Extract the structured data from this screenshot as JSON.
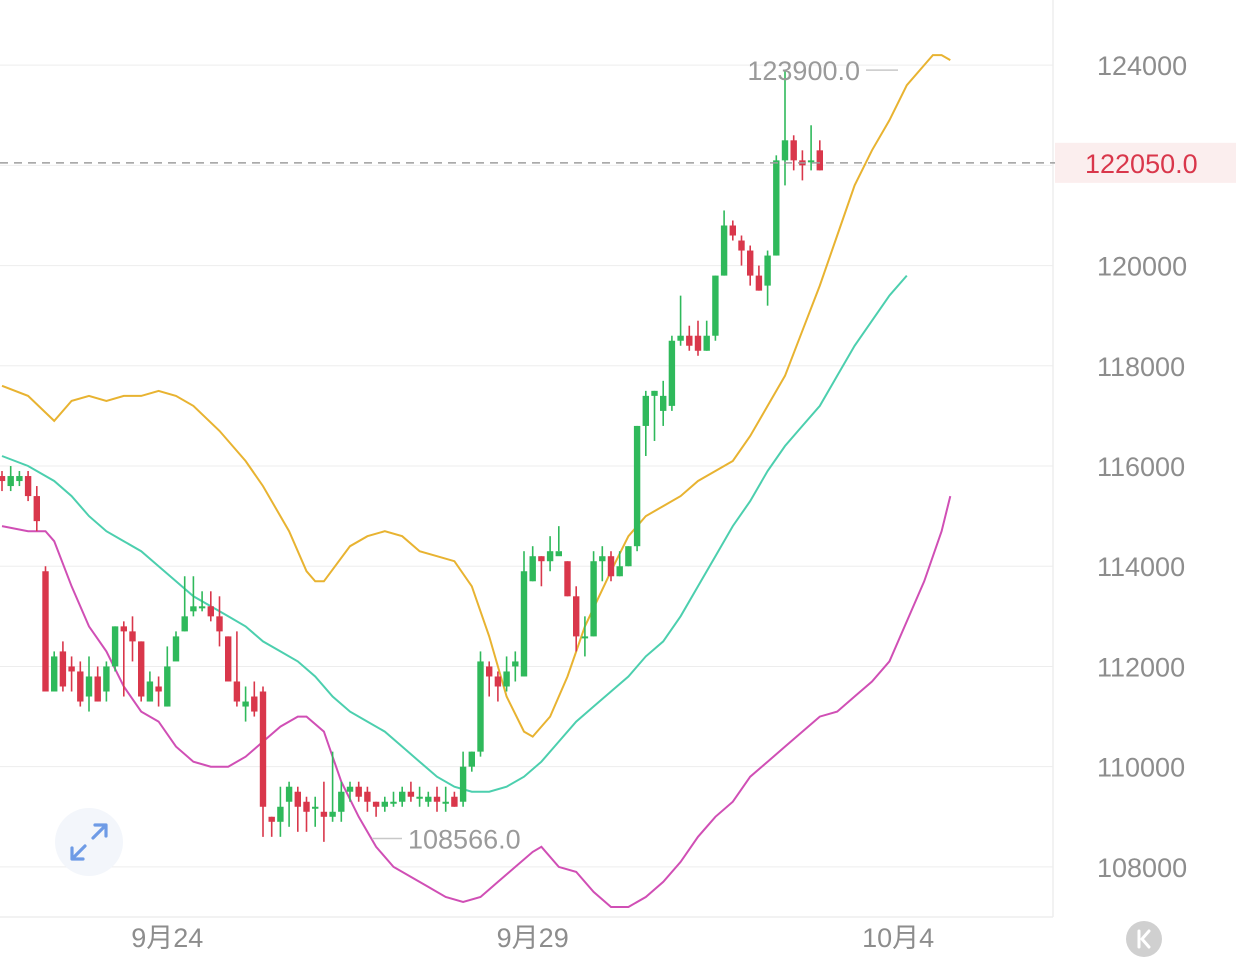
{
  "chart_data": {
    "type": "candlestick",
    "x_labels": [
      "9月24",
      "9月29",
      "10月4"
    ],
    "y_ticks": [
      124000,
      122000,
      120000,
      118000,
      116000,
      114000,
      112000,
      110000,
      108000
    ],
    "y_tick_labels": [
      "124000",
      "120000",
      "118000",
      "116000",
      "114000",
      "112000",
      "110000",
      "108000"
    ],
    "ylim": [
      107000,
      125300
    ],
    "current_price": 122050,
    "current_price_label": "122050.0",
    "high_annotation": {
      "value": 123900,
      "label": "123900.0"
    },
    "low_annotation": {
      "value": 108566,
      "label": "108566.0"
    },
    "colors": {
      "up": "#2fb95b",
      "down": "#d9374b",
      "upper_band": "#e8b331",
      "middle_band": "#4ccfae",
      "lower_band": "#d04fb5",
      "grid": "#ededed"
    },
    "candles": [
      [
        115800,
        115700,
        115900,
        115500
      ],
      [
        115600,
        115800,
        116000,
        115500
      ],
      [
        115700,
        115800,
        115900,
        115600
      ],
      [
        115800,
        115400,
        115900,
        115300
      ],
      [
        115400,
        114900,
        115600,
        114700
      ],
      [
        113900,
        111500,
        114000,
        111500
      ],
      [
        111500,
        112200,
        112300,
        111800
      ],
      [
        112300,
        111600,
        112500,
        111500
      ],
      [
        112000,
        111900,
        112200,
        111500
      ],
      [
        111900,
        111300,
        112100,
        111200
      ],
      [
        111400,
        111800,
        112200,
        111100
      ],
      [
        111800,
        111300,
        112000,
        111300
      ],
      [
        111500,
        112000,
        112100,
        111300
      ],
      [
        112000,
        112800,
        112800,
        111900
      ],
      [
        112800,
        112700,
        112900,
        111400
      ],
      [
        112700,
        112500,
        113000,
        112100
      ],
      [
        112500,
        111400,
        112500,
        111300
      ],
      [
        111300,
        111700,
        111900,
        111300
      ],
      [
        111600,
        111500,
        111800,
        111200
      ],
      [
        111200,
        112000,
        112400,
        111200
      ],
      [
        112100,
        112600,
        112700,
        112200
      ],
      [
        112700,
        113000,
        113800,
        112700
      ],
      [
        113100,
        113200,
        113800,
        113000
      ],
      [
        113200,
        113200,
        113500,
        113100
      ],
      [
        113200,
        113000,
        113500,
        112900
      ],
      [
        113000,
        112700,
        113400,
        112400
      ],
      [
        112600,
        111700,
        112600,
        111700
      ],
      [
        111700,
        111300,
        112700,
        111200
      ],
      [
        111200,
        111300,
        111600,
        110900
      ],
      [
        111400,
        111100,
        111700,
        111000
      ],
      [
        111500,
        109200,
        111600,
        108600
      ],
      [
        109000,
        108900,
        109000,
        108600
      ],
      [
        108900,
        109200,
        109600,
        108600
      ],
      [
        109300,
        109600,
        109700,
        108800
      ],
      [
        109500,
        109200,
        109600,
        108700
      ],
      [
        109300,
        109100,
        109400,
        108700
      ],
      [
        109200,
        109200,
        109400,
        108800
      ],
      [
        109100,
        109000,
        109700,
        108500
      ],
      [
        109000,
        109100,
        110300,
        108900
      ],
      [
        109100,
        109500,
        109700,
        108900
      ],
      [
        109500,
        109600,
        109700,
        109300
      ],
      [
        109600,
        109400,
        109700,
        109300
      ],
      [
        109500,
        109300,
        109600,
        109100
      ],
      [
        109300,
        109200,
        109300,
        109000
      ],
      [
        109200,
        109300,
        109400,
        109100
      ],
      [
        109300,
        109300,
        109500,
        109200
      ],
      [
        109300,
        109500,
        109600,
        109200
      ],
      [
        109500,
        109400,
        109700,
        109300
      ],
      [
        109400,
        109400,
        109600,
        109200
      ],
      [
        109300,
        109400,
        109500,
        109200
      ],
      [
        109400,
        109300,
        109600,
        109100
      ],
      [
        109300,
        109300,
        109600,
        109100
      ],
      [
        109400,
        109200,
        109500,
        109200
      ],
      [
        109300,
        110000,
        110300,
        109200
      ],
      [
        110000,
        110300,
        110300,
        109900
      ],
      [
        110300,
        112100,
        112300,
        110200
      ],
      [
        112000,
        111800,
        112100,
        111400
      ],
      [
        111800,
        111600,
        111900,
        111300
      ],
      [
        111600,
        111900,
        112200,
        111500
      ],
      [
        112000,
        112100,
        112300,
        111700
      ],
      [
        111800,
        113900,
        114300,
        111800
      ],
      [
        113700,
        114200,
        114400,
        113700
      ],
      [
        114200,
        114100,
        114200,
        113600
      ],
      [
        114100,
        114300,
        114600,
        113900
      ],
      [
        114200,
        114300,
        114800,
        114300
      ],
      [
        114100,
        113400,
        114100,
        113400
      ],
      [
        113400,
        112600,
        113600,
        112300
      ],
      [
        112600,
        112600,
        113000,
        112200
      ],
      [
        112600,
        114100,
        114300,
        112600
      ],
      [
        114100,
        114200,
        114400,
        113700
      ],
      [
        114200,
        113800,
        114300,
        113700
      ],
      [
        113800,
        114000,
        114300,
        113800
      ],
      [
        114000,
        114400,
        114400,
        114000
      ],
      [
        114400,
        116800,
        116800,
        114300
      ],
      [
        116800,
        117400,
        117500,
        116200
      ],
      [
        117400,
        117500,
        117500,
        116500
      ],
      [
        117100,
        117400,
        117700,
        116800
      ],
      [
        117200,
        118500,
        118600,
        117100
      ],
      [
        118500,
        118600,
        119400,
        118400
      ],
      [
        118600,
        118400,
        118800,
        118300
      ],
      [
        118600,
        118300,
        118900,
        118200
      ],
      [
        118300,
        118600,
        118900,
        118300
      ],
      [
        118600,
        119800,
        119800,
        118500
      ],
      [
        119800,
        120800,
        121100,
        119800
      ],
      [
        120800,
        120600,
        120900,
        120500
      ],
      [
        120500,
        120300,
        120600,
        120000
      ],
      [
        120300,
        119800,
        120400,
        119600
      ],
      [
        119800,
        119500,
        120000,
        119500
      ],
      [
        119600,
        120200,
        120300,
        119200
      ],
      [
        120200,
        122100,
        122200,
        120200
      ],
      [
        122100,
        122500,
        123900,
        121600
      ],
      [
        122500,
        122100,
        122600,
        121900
      ],
      [
        122100,
        122000,
        122300,
        121700
      ],
      [
        122100,
        122100,
        122800,
        121900
      ],
      [
        122300,
        121900,
        122500,
        121900
      ]
    ],
    "bands": {
      "upper": [
        [
          0,
          117600
        ],
        [
          3,
          117400
        ],
        [
          6,
          116900
        ],
        [
          8,
          117300
        ],
        [
          10,
          117400
        ],
        [
          12,
          117300
        ],
        [
          14,
          117400
        ],
        [
          16,
          117400
        ],
        [
          18,
          117500
        ],
        [
          20,
          117400
        ],
        [
          22,
          117200
        ],
        [
          25,
          116700
        ],
        [
          28,
          116100
        ],
        [
          30,
          115600
        ],
        [
          33,
          114700
        ],
        [
          35,
          113900
        ],
        [
          36,
          113700
        ],
        [
          37,
          113700
        ],
        [
          40,
          114400
        ],
        [
          42,
          114600
        ],
        [
          44,
          114700
        ],
        [
          46,
          114600
        ],
        [
          48,
          114300
        ],
        [
          50,
          114200
        ],
        [
          52,
          114100
        ],
        [
          54,
          113600
        ],
        [
          56,
          112600
        ],
        [
          58,
          111400
        ],
        [
          60,
          110700
        ],
        [
          61,
          110600
        ],
        [
          63,
          111000
        ],
        [
          65,
          111800
        ],
        [
          67,
          112800
        ],
        [
          70,
          113900
        ],
        [
          72,
          114600
        ],
        [
          74,
          115000
        ],
        [
          76,
          115200
        ],
        [
          78,
          115400
        ],
        [
          80,
          115700
        ],
        [
          82,
          115900
        ],
        [
          84,
          116100
        ],
        [
          86,
          116600
        ],
        [
          88,
          117200
        ],
        [
          90,
          117800
        ],
        [
          92,
          118700
        ],
        [
          94,
          119600
        ],
        [
          96,
          120600
        ],
        [
          98,
          121600
        ],
        [
          100,
          122300
        ],
        [
          102,
          122900
        ],
        [
          104,
          123600
        ],
        [
          106,
          124000
        ],
        [
          107,
          124200
        ],
        [
          108,
          124200
        ],
        [
          109,
          124100
        ]
      ],
      "middle": [
        [
          0,
          116200
        ],
        [
          3,
          116000
        ],
        [
          6,
          115700
        ],
        [
          8,
          115400
        ],
        [
          10,
          115000
        ],
        [
          12,
          114700
        ],
        [
          14,
          114500
        ],
        [
          16,
          114300
        ],
        [
          18,
          114000
        ],
        [
          20,
          113700
        ],
        [
          22,
          113400
        ],
        [
          24,
          113200
        ],
        [
          26,
          113000
        ],
        [
          28,
          112800
        ],
        [
          30,
          112500
        ],
        [
          32,
          112300
        ],
        [
          34,
          112100
        ],
        [
          36,
          111800
        ],
        [
          38,
          111400
        ],
        [
          40,
          111100
        ],
        [
          42,
          110900
        ],
        [
          44,
          110700
        ],
        [
          46,
          110400
        ],
        [
          48,
          110100
        ],
        [
          50,
          109800
        ],
        [
          52,
          109600
        ],
        [
          54,
          109500
        ],
        [
          56,
          109500
        ],
        [
          58,
          109600
        ],
        [
          60,
          109800
        ],
        [
          62,
          110100
        ],
        [
          64,
          110500
        ],
        [
          66,
          110900
        ],
        [
          68,
          111200
        ],
        [
          70,
          111500
        ],
        [
          72,
          111800
        ],
        [
          74,
          112200
        ],
        [
          76,
          112500
        ],
        [
          78,
          113000
        ],
        [
          80,
          113600
        ],
        [
          82,
          114200
        ],
        [
          84,
          114800
        ],
        [
          86,
          115300
        ],
        [
          88,
          115900
        ],
        [
          90,
          116400
        ],
        [
          92,
          116800
        ],
        [
          94,
          117200
        ],
        [
          96,
          117800
        ],
        [
          98,
          118400
        ],
        [
          100,
          118900
        ],
        [
          102,
          119400
        ],
        [
          104,
          119800
        ]
      ],
      "lower": [
        [
          0,
          114800
        ],
        [
          3,
          114700
        ],
        [
          5,
          114700
        ],
        [
          6,
          114500
        ],
        [
          8,
          113600
        ],
        [
          10,
          112800
        ],
        [
          12,
          112300
        ],
        [
          14,
          111600
        ],
        [
          16,
          111100
        ],
        [
          18,
          110900
        ],
        [
          20,
          110400
        ],
        [
          22,
          110100
        ],
        [
          24,
          110000
        ],
        [
          26,
          110000
        ],
        [
          28,
          110200
        ],
        [
          30,
          110500
        ],
        [
          32,
          110800
        ],
        [
          34,
          111000
        ],
        [
          35,
          111000
        ],
        [
          37,
          110700
        ],
        [
          39,
          109700
        ],
        [
          41,
          109000
        ],
        [
          43,
          108400
        ],
        [
          45,
          108000
        ],
        [
          47,
          107800
        ],
        [
          49,
          107600
        ],
        [
          51,
          107400
        ],
        [
          53,
          107300
        ],
        [
          55,
          107400
        ],
        [
          57,
          107700
        ],
        [
          59,
          108000
        ],
        [
          61,
          108300
        ],
        [
          62,
          108400
        ],
        [
          64,
          108000
        ],
        [
          66,
          107900
        ],
        [
          68,
          107500
        ],
        [
          70,
          107200
        ],
        [
          72,
          107200
        ],
        [
          74,
          107400
        ],
        [
          76,
          107700
        ],
        [
          78,
          108100
        ],
        [
          80,
          108600
        ],
        [
          82,
          109000
        ],
        [
          84,
          109300
        ],
        [
          86,
          109800
        ],
        [
          88,
          110100
        ],
        [
          90,
          110400
        ],
        [
          92,
          110700
        ],
        [
          94,
          111000
        ],
        [
          96,
          111100
        ],
        [
          98,
          111400
        ],
        [
          100,
          111700
        ],
        [
          102,
          112100
        ],
        [
          104,
          112900
        ],
        [
          106,
          113700
        ],
        [
          108,
          114700
        ],
        [
          109,
          115400
        ]
      ]
    }
  },
  "ui": {
    "expand_icon": "expand-arrows-icon",
    "k_icon": "k-chevron-icon"
  }
}
